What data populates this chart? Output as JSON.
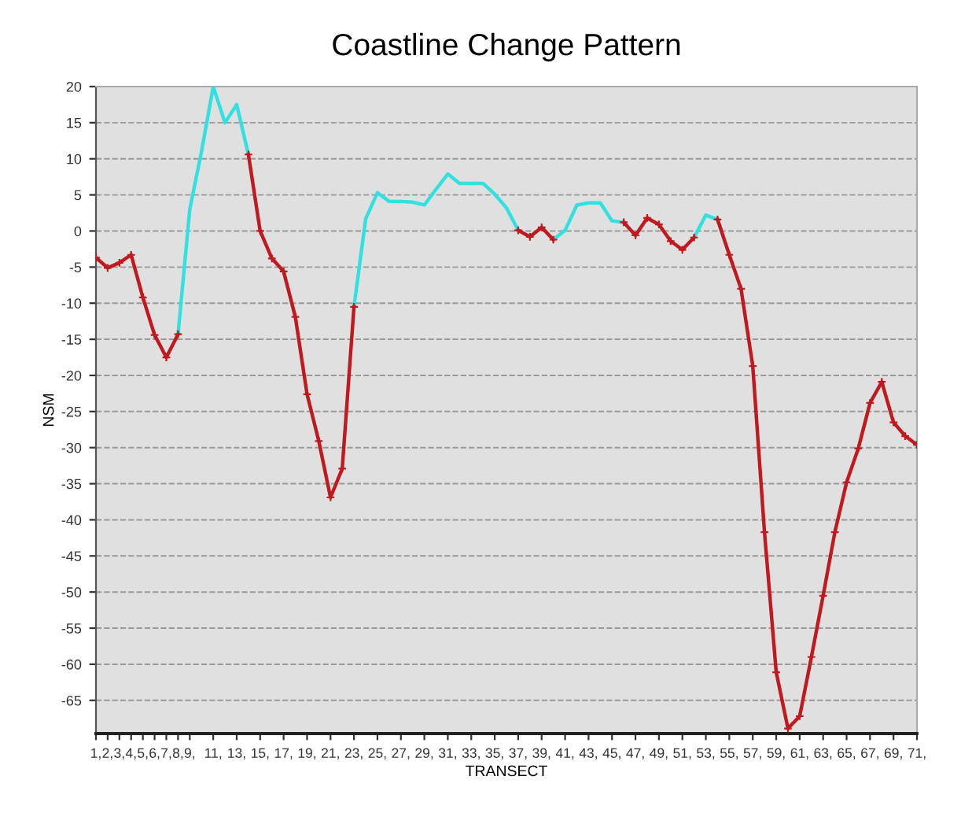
{
  "chart_data": {
    "type": "line",
    "title": "Coastline Change Pattern",
    "xlabel": "TRANSECT",
    "ylabel": "NSM",
    "x": [
      1,
      2,
      3,
      4,
      5,
      6,
      7,
      8,
      9,
      10,
      11,
      12,
      13,
      14,
      15,
      16,
      17,
      18,
      19,
      20,
      21,
      22,
      23,
      24,
      25,
      26,
      27,
      28,
      29,
      30,
      31,
      32,
      33,
      34,
      35,
      36,
      37,
      38,
      39,
      40,
      41,
      42,
      43,
      44,
      45,
      46,
      47,
      48,
      49,
      50,
      51,
      52,
      53,
      54,
      55,
      56,
      57,
      58,
      59,
      60,
      61,
      62,
      63,
      64,
      65,
      66,
      67,
      68,
      69,
      70,
      71
    ],
    "series": [
      {
        "color": "#33e0e0",
        "marker": "none",
        "values": [
          null,
          null,
          null,
          null,
          null,
          null,
          null,
          -14.3,
          3.0,
          11,
          20,
          15,
          17.5,
          10.6,
          null,
          null,
          null,
          null,
          null,
          null,
          null,
          null,
          -10.5,
          1.7,
          5.3,
          4.1,
          4.1,
          4.0,
          3.6,
          5.8,
          7.9,
          6.6,
          6.6,
          6.6,
          5.1,
          3.2,
          0.1,
          null,
          null,
          -1.2,
          0.1,
          3.6,
          3.9,
          3.9,
          1.4,
          1.2,
          null,
          null,
          null,
          null,
          null,
          -0.9,
          2.2,
          1.6,
          null,
          null,
          null,
          null,
          null,
          null,
          null,
          null,
          null,
          null,
          null,
          null,
          null,
          null,
          null,
          null,
          null
        ]
      },
      {
        "color": "#c0191f",
        "marker": "cross",
        "values": [
          -3.7,
          -5.1,
          -4.4,
          -3.3,
          -9.2,
          -14.4,
          -17.5,
          -14.3,
          null,
          null,
          null,
          null,
          null,
          10.6,
          0,
          -3.8,
          -5.6,
          -11.9,
          -22.6,
          -29.1,
          -36.9,
          -32.9,
          -10.5,
          null,
          null,
          null,
          null,
          null,
          null,
          null,
          null,
          null,
          null,
          null,
          null,
          null,
          0.1,
          -0.8,
          0.5,
          -1.2,
          null,
          null,
          null,
          null,
          null,
          1.2,
          -0.6,
          1.8,
          0.9,
          -1.4,
          -2.6,
          -0.9,
          null,
          1.6,
          -3.3,
          -8.0,
          -18.7,
          -41.7,
          -61.1,
          -68.9,
          -67.2,
          -59.0,
          -50.5,
          -41.7,
          -34.8,
          -30.1,
          -23.8,
          -20.9,
          -26.5,
          -28.4,
          -29.6
        ]
      }
    ],
    "xlim": [
      1,
      71
    ],
    "xticks": [
      {
        "value": 1,
        "label": "1,"
      },
      {
        "value": 2,
        "label": "2,"
      },
      {
        "value": 3,
        "label": "3,"
      },
      {
        "value": 4,
        "label": "4,"
      },
      {
        "value": 5,
        "label": "5,"
      },
      {
        "value": 6,
        "label": "6,"
      },
      {
        "value": 7,
        "label": "7,"
      },
      {
        "value": 8,
        "label": "8,"
      },
      {
        "value": 9,
        "label": "9,"
      },
      {
        "value": 11,
        "label": "11,"
      },
      {
        "value": 13,
        "label": "13,"
      },
      {
        "value": 15,
        "label": "15,"
      },
      {
        "value": 17,
        "label": "17,"
      },
      {
        "value": 19,
        "label": "19,"
      },
      {
        "value": 21,
        "label": "21,"
      },
      {
        "value": 23,
        "label": "23,"
      },
      {
        "value": 25,
        "label": "25,"
      },
      {
        "value": 27,
        "label": "27,"
      },
      {
        "value": 29,
        "label": "29,"
      },
      {
        "value": 31,
        "label": "31,"
      },
      {
        "value": 33,
        "label": "33,"
      },
      {
        "value": 35,
        "label": "35,"
      },
      {
        "value": 37,
        "label": "37,"
      },
      {
        "value": 39,
        "label": "39,"
      },
      {
        "value": 41,
        "label": "41,"
      },
      {
        "value": 43,
        "label": "43,"
      },
      {
        "value": 45,
        "label": "45,"
      },
      {
        "value": 47,
        "label": "47,"
      },
      {
        "value": 49,
        "label": "49,"
      },
      {
        "value": 51,
        "label": "51,"
      },
      {
        "value": 53,
        "label": "53,"
      },
      {
        "value": 55,
        "label": "55,"
      },
      {
        "value": 57,
        "label": "57,"
      },
      {
        "value": 59,
        "label": "59,"
      },
      {
        "value": 61,
        "label": "61,"
      },
      {
        "value": 63,
        "label": "63,"
      },
      {
        "value": 65,
        "label": "65,"
      },
      {
        "value": 67,
        "label": "67,"
      },
      {
        "value": 69,
        "label": "69,"
      },
      {
        "value": 71,
        "label": "71,"
      }
    ],
    "ylim": [
      -69.6,
      20
    ],
    "yticks": [
      20,
      15,
      10,
      5,
      0,
      -5,
      -10,
      -15,
      -20,
      -25,
      -30,
      -35,
      -40,
      -45,
      -50,
      -55,
      -60,
      -65
    ],
    "grid": "y",
    "line_style": "solid"
  }
}
